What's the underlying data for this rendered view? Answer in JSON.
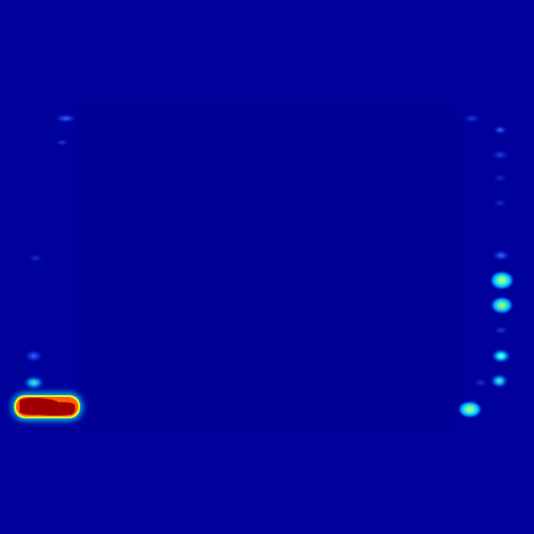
{
  "image": {
    "kind": "false-color heatmap (jet colormap) photograph",
    "colors": {
      "background": "#00009a",
      "inner_panel": "#000094",
      "faint_blue": "#1a3cff",
      "cyan": "#00e5ff",
      "green_yellow": "#d8ff30",
      "yellow": "#ffe000",
      "orange": "#ff5a00",
      "red": "#a00000"
    }
  }
}
